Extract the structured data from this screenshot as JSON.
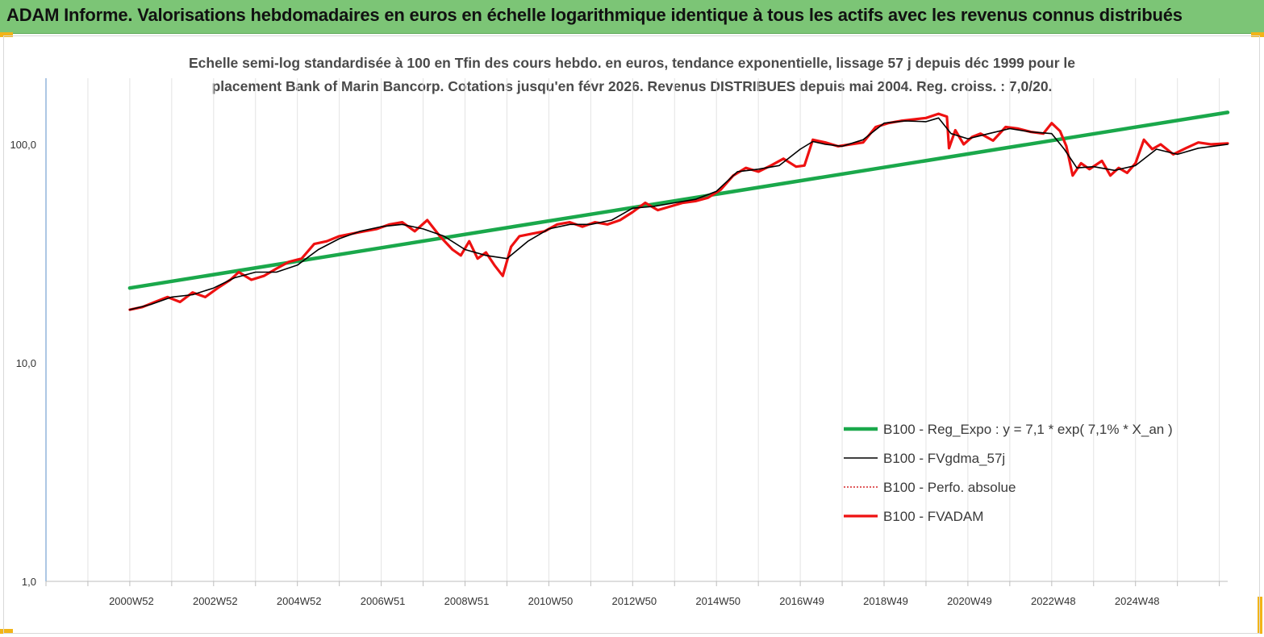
{
  "header": {
    "title": "ADAM Informe. Valorisations hebdomadaires en euros en échelle logarithmique identique à tous les actifs avec les revenus connus distribués",
    "accent_color": "#7cc576"
  },
  "chart_data": {
    "type": "line",
    "title_line1": "Echelle semi-log standardisée à 100 en Tfin des cours hebdo. en euros, tendance exponentielle, lissage 57 j depuis déc 1999 pour le",
    "title_line2": "placement Bank of Marin Bancorp. Cotations jusqu'en févr 2026. Revenus DISTRIBUES depuis mai 2004. Reg. croiss. : 7,0/20.",
    "y_scale": "log",
    "ylim": [
      1,
      200
    ],
    "xlim": [
      1998.0,
      2026.2
    ],
    "y_ticks": [
      {
        "value": 1,
        "label": "1,0"
      },
      {
        "value": 10,
        "label": "10,0"
      },
      {
        "value": 100,
        "label": "100,0"
      }
    ],
    "x_ticks": [
      {
        "value": 2000.0,
        "label": "2000W52"
      },
      {
        "value": 2002.0,
        "label": "2002W52"
      },
      {
        "value": 2004.0,
        "label": "2004W52"
      },
      {
        "value": 2006.0,
        "label": "2006W51"
      },
      {
        "value": 2008.0,
        "label": "2008W51"
      },
      {
        "value": 2010.0,
        "label": "2010W50"
      },
      {
        "value": 2012.0,
        "label": "2012W50"
      },
      {
        "value": 2014.0,
        "label": "2014W50"
      },
      {
        "value": 2016.0,
        "label": "2016W49"
      },
      {
        "value": 2018.0,
        "label": "2018W49"
      },
      {
        "value": 2020.0,
        "label": "2020W49"
      },
      {
        "value": 2022.0,
        "label": "2022W48"
      },
      {
        "value": 2024.0,
        "label": "2024W48"
      }
    ],
    "grid": "vertical",
    "legend_position": "bottom-right",
    "series": [
      {
        "name": "B100 - Reg_Expo : y = 7,1 * exp( 7,1% *  X_an )",
        "color": "#1aa84b",
        "style": "solid",
        "width": 4.5,
        "x": [
          2000.0,
          2026.2
        ],
        "y": [
          22,
          140
        ]
      },
      {
        "name": "B100 - FVgdma_57j",
        "color": "#000000",
        "style": "solid",
        "width": 1.6,
        "x": [
          2000.0,
          2000.5,
          2001.0,
          2001.5,
          2002.0,
          2002.5,
          2003.0,
          2003.5,
          2004.0,
          2004.5,
          2005.0,
          2005.5,
          2006.0,
          2006.5,
          2007.0,
          2007.5,
          2008.0,
          2008.5,
          2009.0,
          2009.5,
          2010.0,
          2010.5,
          2011.0,
          2011.5,
          2012.0,
          2012.5,
          2013.0,
          2013.5,
          2014.0,
          2014.5,
          2015.0,
          2015.5,
          2016.0,
          2016.3,
          2016.6,
          2017.0,
          2017.5,
          2018.0,
          2018.5,
          2019.0,
          2019.3,
          2019.6,
          2020.0,
          2020.5,
          2021.0,
          2021.5,
          2022.0,
          2022.3,
          2022.6,
          2023.0,
          2023.5,
          2024.0,
          2024.5,
          2025.0,
          2025.5,
          2026.2
        ],
        "y": [
          17.5,
          18.5,
          20,
          20.5,
          22,
          24.5,
          26,
          26,
          28,
          33,
          37,
          40,
          42,
          43,
          41,
          38,
          33,
          31,
          30,
          36,
          41,
          43,
          43,
          45,
          51,
          52,
          54,
          56,
          61,
          75,
          77,
          80,
          95,
          103,
          100,
          98,
          105,
          125,
          128,
          127,
          132,
          112,
          106,
          112,
          118,
          114,
          112,
          95,
          78,
          79,
          76,
          80,
          95,
          90,
          96,
          100
        ]
      },
      {
        "name": "B100 - Perfo. absolue",
        "color": "#d62728",
        "style": "dotted",
        "width": 1.6,
        "x": [],
        "y": []
      },
      {
        "name": "B100 - FVADAM",
        "color": "#ee1111",
        "style": "solid",
        "width": 3.2,
        "x": [
          2000.0,
          2000.3,
          2000.6,
          2000.9,
          2001.2,
          2001.5,
          2001.8,
          2002.1,
          2002.4,
          2002.6,
          2002.9,
          2003.2,
          2003.5,
          2003.8,
          2004.1,
          2004.4,
          2004.7,
          2005.0,
          2005.3,
          2005.6,
          2005.9,
          2006.2,
          2006.5,
          2006.8,
          2007.1,
          2007.4,
          2007.7,
          2007.9,
          2008.1,
          2008.3,
          2008.5,
          2008.7,
          2008.9,
          2009.1,
          2009.3,
          2009.6,
          2009.9,
          2010.2,
          2010.5,
          2010.8,
          2011.1,
          2011.4,
          2011.7,
          2012.0,
          2012.3,
          2012.6,
          2012.9,
          2013.2,
          2013.5,
          2013.8,
          2014.1,
          2014.4,
          2014.7,
          2015.0,
          2015.3,
          2015.6,
          2015.9,
          2016.1,
          2016.3,
          2016.6,
          2016.9,
          2017.2,
          2017.5,
          2017.8,
          2018.1,
          2018.4,
          2018.7,
          2019.0,
          2019.3,
          2019.5,
          2019.55,
          2019.7,
          2019.9,
          2020.1,
          2020.3,
          2020.6,
          2020.9,
          2021.2,
          2021.5,
          2021.8,
          2022.0,
          2022.2,
          2022.35,
          2022.5,
          2022.7,
          2022.9,
          2023.2,
          2023.4,
          2023.6,
          2023.8,
          2024.0,
          2024.2,
          2024.4,
          2024.6,
          2024.9,
          2025.2,
          2025.5,
          2025.8,
          2026.2
        ],
        "y": [
          17.5,
          18,
          19,
          20,
          19,
          21,
          20,
          22,
          24,
          26,
          24,
          25,
          27,
          29,
          30,
          35,
          36,
          38,
          39,
          40,
          41,
          43,
          44,
          40,
          45,
          38,
          33,
          31,
          36,
          30,
          32,
          28,
          25,
          34,
          38,
          39,
          40,
          43,
          44,
          42,
          44,
          43,
          45,
          49,
          54,
          50,
          52,
          54,
          55,
          57,
          62,
          72,
          78,
          75,
          80,
          86,
          79,
          80,
          105,
          102,
          98,
          100,
          102,
          120,
          125,
          128,
          130,
          132,
          138,
          134,
          96,
          116,
          100,
          108,
          112,
          104,
          120,
          118,
          114,
          112,
          125,
          115,
          98,
          72,
          82,
          77,
          84,
          72,
          78,
          74,
          82,
          105,
          95,
          100,
          90,
          96,
          102,
          100,
          101
        ]
      }
    ]
  }
}
